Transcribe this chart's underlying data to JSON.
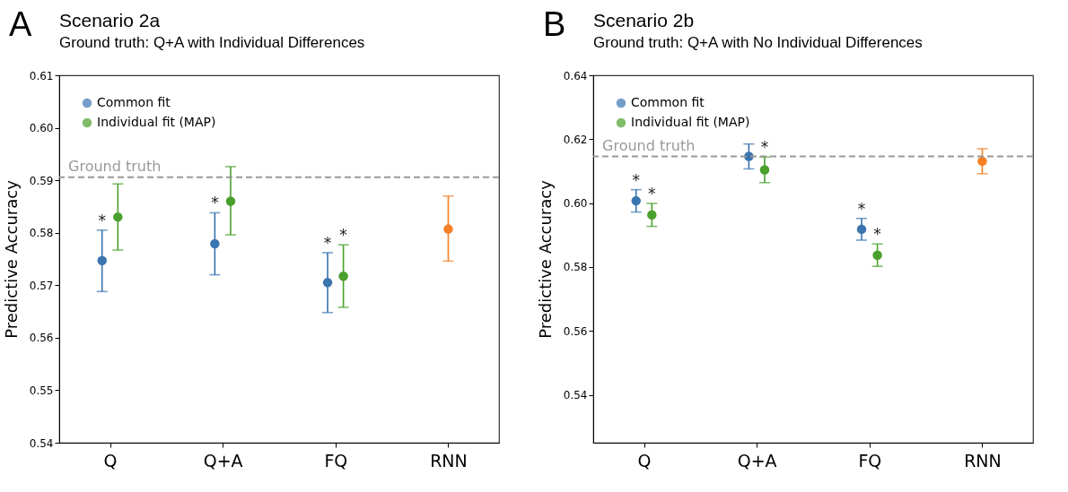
{
  "chart_data": [
    {
      "type": "scatter",
      "title": "Scenario 2a",
      "subtitle": "Ground truth: Q+A with Individual Differences",
      "ylabel": "Predictive Accuracy",
      "categories": [
        "Q",
        "Q+A",
        "FQ",
        "RNN"
      ],
      "series": [
        {
          "name": "Common fit",
          "color": "#3a75b0",
          "values": [
            0.5747,
            0.5779,
            0.5705,
            null
          ],
          "errors": [
            [
              0.5688,
              0.5805
            ],
            [
              0.572,
              0.5838
            ],
            [
              0.5648,
              0.5762
            ],
            null
          ]
        },
        {
          "name": "Individual fit (MAP)",
          "color": "#4aa02c",
          "values": [
            0.583,
            0.586,
            0.5717,
            null
          ],
          "errors": [
            [
              0.5767,
              0.5893
            ],
            [
              0.5796,
              0.5926
            ],
            [
              0.5658,
              0.5777
            ],
            null
          ]
        },
        {
          "color": "#f58025",
          "values": [
            null,
            null,
            null,
            0.5807
          ],
          "errors": [
            null,
            null,
            null,
            [
              0.5746,
              0.587
            ]
          ]
        }
      ],
      "ylim": [
        0.54,
        0.61
      ],
      "yticks": [
        {
          "value": 0.54,
          "label": "0.54"
        },
        {
          "value": 0.55,
          "label": "0.55"
        },
        {
          "value": 0.56,
          "label": "0.56"
        },
        {
          "value": 0.57,
          "label": "0.57"
        },
        {
          "value": 0.58,
          "label": "0.58"
        },
        {
          "value": 0.59,
          "label": "0.59"
        },
        {
          "value": 0.6,
          "label": "0.60"
        },
        {
          "value": 0.61,
          "label": "0.61"
        }
      ],
      "ref_lines": [
        {
          "axis": "y",
          "value": 0.5906,
          "label": "Ground truth",
          "color": "#999999",
          "line_style": "dashed"
        }
      ],
      "annotations": [
        "A",
        {
          "text": "*",
          "x": "Q",
          "y": 0.5747
        },
        {
          "text": "*",
          "x": "Q+A",
          "y": 0.5779
        },
        {
          "text": "*",
          "x": "FQ",
          "y": 0.5705
        },
        {
          "text": "*",
          "x": "FQ",
          "y": 0.5717
        }
      ],
      "marker": "circle",
      "legend": "top left",
      "grid": false
    },
    {
      "type": "scatter",
      "title": "Scenario 2b",
      "subtitle": "Ground truth: Q+A with No Individual Differences",
      "ylabel": "Predictive Accuracy",
      "categories": [
        "Q",
        "Q+A",
        "FQ",
        "RNN"
      ],
      "series": [
        {
          "name": "Common fit",
          "color": "#3a75b0",
          "values": [
            0.6007,
            0.6146,
            0.5918,
            null
          ],
          "errors": [
            [
              0.5972,
              0.6042
            ],
            [
              0.6107,
              0.6185
            ],
            [
              0.5884,
              0.5952
            ],
            null
          ]
        },
        {
          "name": "Individual fit (MAP)",
          "color": "#4aa02c",
          "values": [
            0.5963,
            0.6104,
            0.5837,
            null
          ],
          "errors": [
            [
              0.5927,
              0.5999
            ],
            [
              0.6064,
              0.6144
            ],
            [
              0.5802,
              0.5872
            ],
            null
          ]
        },
        {
          "color": "#f58025",
          "values": [
            null,
            null,
            null,
            0.6131
          ],
          "errors": [
            null,
            null,
            null,
            [
              0.6092,
              0.617
            ]
          ]
        }
      ],
      "ylim": [
        0.525,
        0.64
      ],
      "yticks": [
        {
          "value": 0.54,
          "label": "0.54"
        },
        {
          "value": 0.56,
          "label": "0.56"
        },
        {
          "value": 0.58,
          "label": "0.58"
        },
        {
          "value": 0.6,
          "label": "0.60"
        },
        {
          "value": 0.62,
          "label": "0.62"
        },
        {
          "value": 0.64,
          "label": "0.64"
        }
      ],
      "ref_lines": [
        {
          "axis": "y",
          "value": 0.6146,
          "label": "Ground truth",
          "color": "#999999",
          "line_style": "dashed"
        }
      ],
      "annotations": [
        "B",
        {
          "text": "*",
          "x": "Q",
          "y": 0.6007
        },
        {
          "text": "*",
          "x": "Q",
          "y": 0.5963
        },
        {
          "text": "*",
          "x": "Q+A",
          "y": 0.6104
        },
        {
          "text": "*",
          "x": "FQ",
          "y": 0.5918
        },
        {
          "text": "*",
          "x": "FQ",
          "y": 0.5837
        }
      ],
      "marker": "circle",
      "legend": "top left",
      "grid": false
    }
  ]
}
